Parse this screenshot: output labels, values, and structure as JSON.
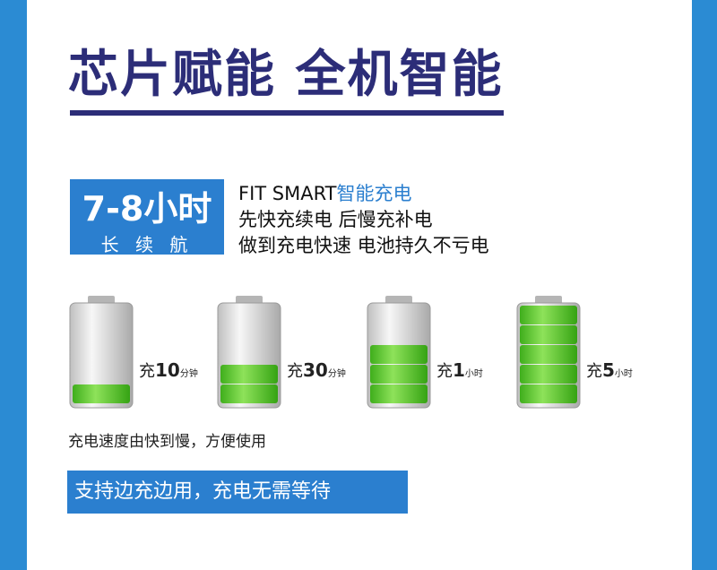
{
  "header": {
    "title": "芯片赋能 全机智能"
  },
  "badge": {
    "hours": "7-8小时",
    "caption": "长 续 航"
  },
  "intro": {
    "brand": "FIT SMART",
    "highlight": "智能充电",
    "lines": [
      "先快充续电 后慢充补电",
      "做到充电快速 电池持久不亏电"
    ]
  },
  "batteries": [
    {
      "prefix": "充",
      "amount": "10",
      "unit": "分钟"
    },
    {
      "prefix": "充",
      "amount": "30",
      "unit": "分钟"
    },
    {
      "prefix": "充",
      "amount": "1",
      "unit": "小时"
    },
    {
      "prefix": "充",
      "amount": "5",
      "unit": "小时"
    }
  ],
  "caption": "充电速度由快到慢，方便使用",
  "banner": "支持边充边用，充电无需等待"
}
